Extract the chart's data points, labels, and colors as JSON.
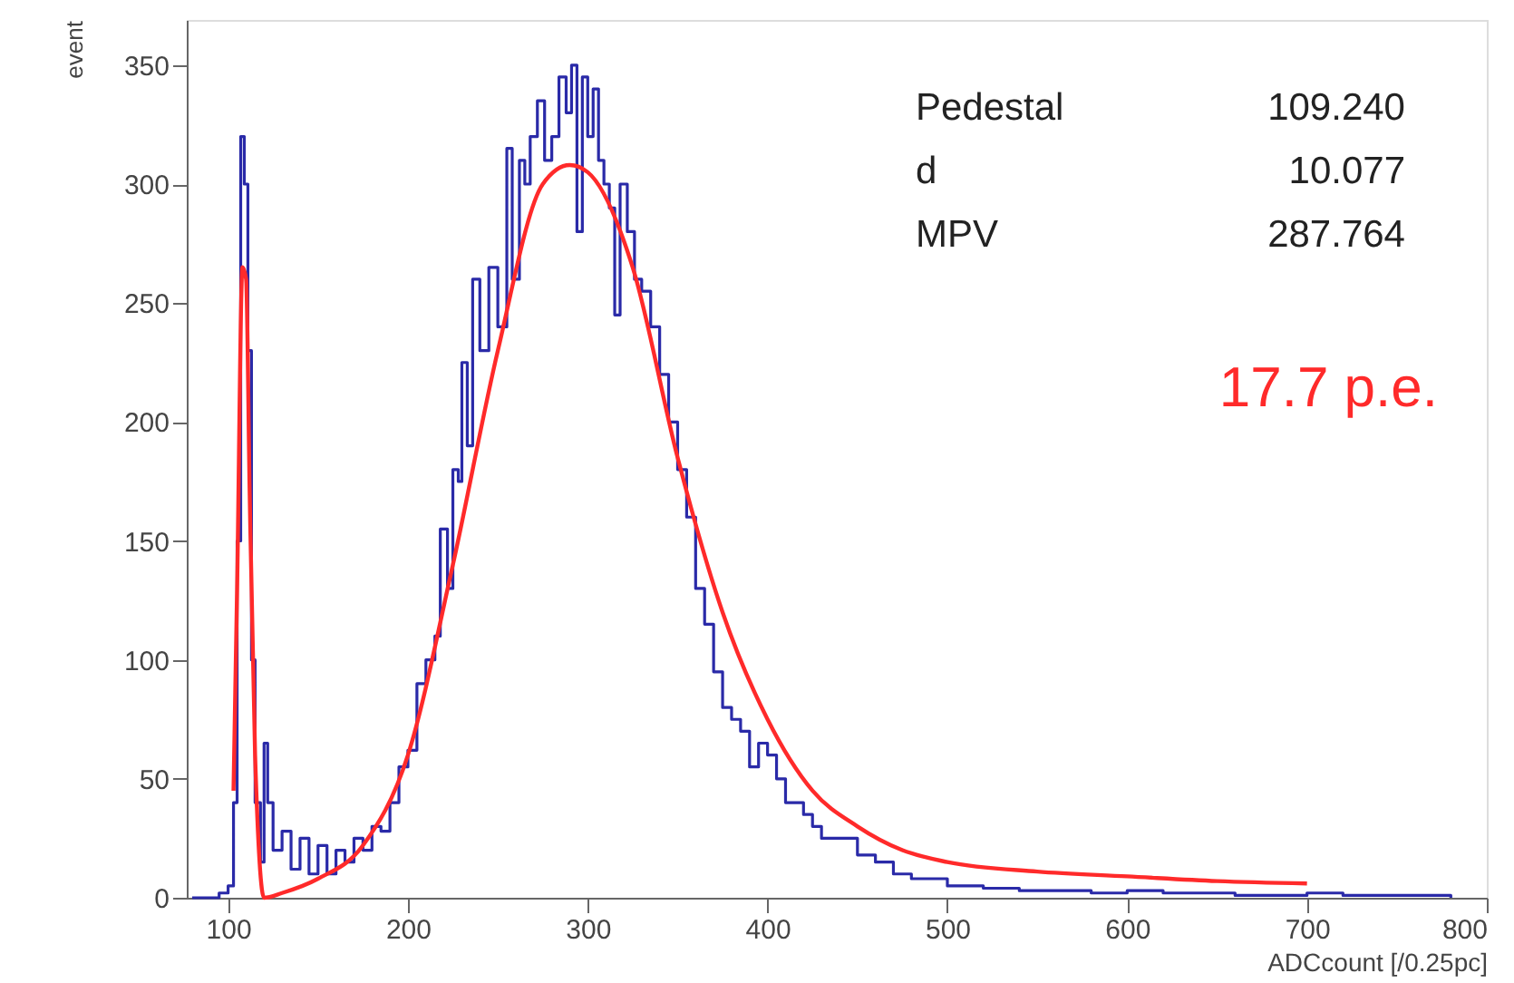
{
  "chart_data": {
    "type": "line",
    "xlabel": "ADCcount [/0.25pc]",
    "ylabel": "event",
    "xlim": [
      77,
      800
    ],
    "ylim": [
      0,
      369
    ],
    "xticks": [
      100,
      200,
      300,
      400,
      500,
      600,
      700,
      800
    ],
    "yticks": [
      0,
      50,
      100,
      150,
      200,
      250,
      300,
      350
    ],
    "grid": false,
    "marker": "none",
    "line_style": "solid",
    "annotations": [
      "Pedestal",
      "109.240",
      "d",
      "10.077",
      "MPV",
      "287.764",
      "17.7 p.e."
    ],
    "series": [
      {
        "type": "step",
        "color": "#2a2aa8",
        "x": [
          80,
          90,
          95,
          100,
          103,
          105,
          107,
          109,
          111,
          113,
          115,
          118,
          120,
          122,
          125,
          130,
          135,
          140,
          145,
          150,
          155,
          160,
          165,
          170,
          175,
          180,
          185,
          190,
          195,
          200,
          205,
          210,
          215,
          218,
          222,
          225,
          228,
          230,
          233,
          236,
          240,
          245,
          250,
          255,
          258,
          262,
          265,
          268,
          272,
          276,
          280,
          284,
          288,
          291,
          294,
          297,
          300,
          303,
          306,
          309,
          312,
          315,
          318,
          322,
          326,
          330,
          335,
          340,
          345,
          350,
          355,
          360,
          365,
          370,
          375,
          380,
          385,
          390,
          395,
          400,
          405,
          410,
          415,
          420,
          425,
          430,
          440,
          450,
          460,
          470,
          480,
          490,
          500,
          520,
          540,
          560,
          580,
          600,
          620,
          640,
          660,
          680,
          700,
          720,
          740,
          760,
          780
        ],
        "values": [
          0,
          0,
          2,
          5,
          40,
          150,
          320,
          300,
          230,
          100,
          40,
          15,
          65,
          40,
          20,
          28,
          12,
          25,
          10,
          22,
          10,
          20,
          15,
          25,
          20,
          30,
          28,
          40,
          55,
          62,
          90,
          100,
          110,
          155,
          130,
          180,
          175,
          225,
          190,
          260,
          230,
          265,
          240,
          315,
          260,
          310,
          300,
          320,
          335,
          310,
          320,
          345,
          330,
          350,
          280,
          345,
          320,
          340,
          310,
          300,
          290,
          245,
          300,
          280,
          260,
          255,
          240,
          220,
          200,
          180,
          160,
          130,
          115,
          95,
          80,
          75,
          70,
          55,
          65,
          60,
          50,
          40,
          40,
          35,
          30,
          25,
          25,
          18,
          15,
          10,
          8,
          8,
          5,
          4,
          3,
          3,
          2,
          3,
          2,
          2,
          1,
          1,
          2,
          1,
          1,
          1,
          0
        ]
      },
      {
        "type": "line",
        "color": "#ff2a2a",
        "x": [
          103,
          105,
          108,
          110,
          112,
          115,
          120,
          130,
          150,
          175,
          200,
          225,
          250,
          275,
          290,
          300,
          325,
          350,
          375,
          400,
          425,
          450,
          475,
          500,
          550,
          600,
          650,
          700
        ],
        "values": [
          45,
          130,
          265,
          260,
          170,
          60,
          0,
          2,
          8,
          22,
          60,
          140,
          230,
          300,
          308,
          305,
          265,
          185,
          120,
          75,
          45,
          30,
          20,
          15,
          11,
          9,
          7,
          6
        ]
      }
    ]
  }
}
